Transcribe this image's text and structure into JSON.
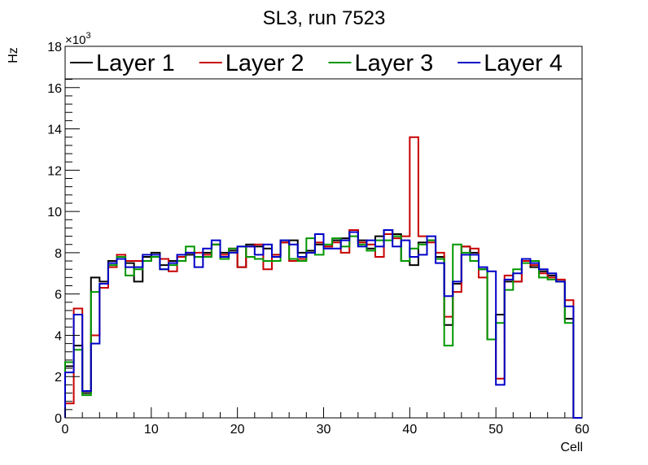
{
  "chart_data": {
    "type": "step",
    "title": "SL3, run 7523",
    "xlabel": "Cell",
    "ylabel": "Hz",
    "y_multiplier_label": "×10",
    "y_multiplier_exp": "3",
    "xlim": [
      0,
      60
    ],
    "ylim": [
      0,
      18
    ],
    "x_ticks": [
      0,
      10,
      20,
      30,
      40,
      50,
      60
    ],
    "y_ticks": [
      0,
      2,
      4,
      6,
      8,
      10,
      12,
      14,
      16,
      18
    ],
    "grid": false,
    "legend_position": "top",
    "bin_width": 1,
    "bins_start": 0,
    "series": [
      {
        "name": "Layer 1",
        "color": "#000000",
        "values": [
          2.5,
          3.5,
          1.2,
          6.8,
          6.6,
          7.6,
          7.8,
          7.5,
          6.6,
          7.8,
          8.0,
          7.4,
          7.6,
          7.8,
          7.9,
          7.8,
          8.0,
          8.4,
          8.0,
          8.1,
          7.3,
          8.4,
          8.3,
          8.2,
          7.9,
          8.5,
          8.6,
          8.0,
          8.1,
          8.4,
          8.3,
          8.6,
          8.7,
          9.1,
          8.6,
          8.2,
          8.8,
          9.1,
          8.9,
          7.6,
          7.4,
          8.5,
          8.6,
          7.8,
          4.5,
          6.5,
          8.3,
          8.0,
          7.2,
          3.8,
          5.0,
          6.6,
          6.6,
          7.6,
          7.3,
          7.1,
          6.9,
          6.6,
          4.8,
          0
        ]
      },
      {
        "name": "Layer 2",
        "color": "#c80000",
        "values": [
          0.7,
          5.3,
          1.3,
          4.0,
          6.3,
          7.3,
          7.9,
          7.6,
          7.6,
          7.6,
          7.8,
          7.7,
          7.1,
          7.8,
          8.0,
          8.0,
          7.9,
          8.4,
          7.9,
          8.2,
          7.3,
          8.3,
          8.4,
          7.2,
          7.9,
          8.5,
          7.6,
          7.7,
          8.0,
          8.5,
          8.3,
          8.5,
          8.0,
          9.1,
          8.5,
          8.4,
          7.8,
          8.9,
          8.7,
          8.8,
          13.6,
          8.8,
          8.5,
          8.0,
          4.9,
          6.1,
          8.3,
          8.2,
          6.8,
          3.8,
          1.9,
          6.9,
          6.6,
          7.6,
          7.4,
          7.0,
          6.8,
          6.7,
          5.7,
          0
        ]
      },
      {
        "name": "Layer 3",
        "color": "#009600",
        "values": [
          2.7,
          3.3,
          1.1,
          6.1,
          6.5,
          7.4,
          7.8,
          6.9,
          7.2,
          7.6,
          7.8,
          7.2,
          7.4,
          7.6,
          8.3,
          7.8,
          7.8,
          8.4,
          7.7,
          8.2,
          8.3,
          7.8,
          7.7,
          7.6,
          7.6,
          8.6,
          7.7,
          7.6,
          8.7,
          7.9,
          8.4,
          8.7,
          8.3,
          8.8,
          8.4,
          8.1,
          8.6,
          8.6,
          8.8,
          7.6,
          8.2,
          8.4,
          8.6,
          7.7,
          3.5,
          8.4,
          8.0,
          7.6,
          7.2,
          3.8,
          4.6,
          6.2,
          7.2,
          7.5,
          7.6,
          6.8,
          6.7,
          6.6,
          4.6,
          0
        ]
      },
      {
        "name": "Layer 4",
        "color": "#0000c8",
        "values": [
          2.2,
          5.0,
          1.3,
          3.6,
          6.5,
          7.5,
          7.7,
          7.3,
          7.3,
          7.9,
          7.9,
          7.2,
          7.5,
          7.9,
          8.0,
          7.3,
          8.2,
          8.6,
          7.8,
          8.0,
          8.3,
          8.3,
          7.9,
          8.4,
          7.8,
          8.6,
          8.4,
          7.8,
          8.0,
          8.9,
          8.2,
          8.2,
          8.6,
          9.0,
          8.3,
          8.6,
          8.3,
          9.1,
          8.3,
          8.6,
          7.8,
          7.9,
          8.8,
          7.5,
          5.9,
          6.6,
          7.9,
          7.9,
          7.3,
          7.1,
          1.6,
          6.7,
          7.0,
          7.7,
          7.5,
          7.2,
          7.0,
          6.6,
          5.4,
          0
        ]
      }
    ]
  }
}
